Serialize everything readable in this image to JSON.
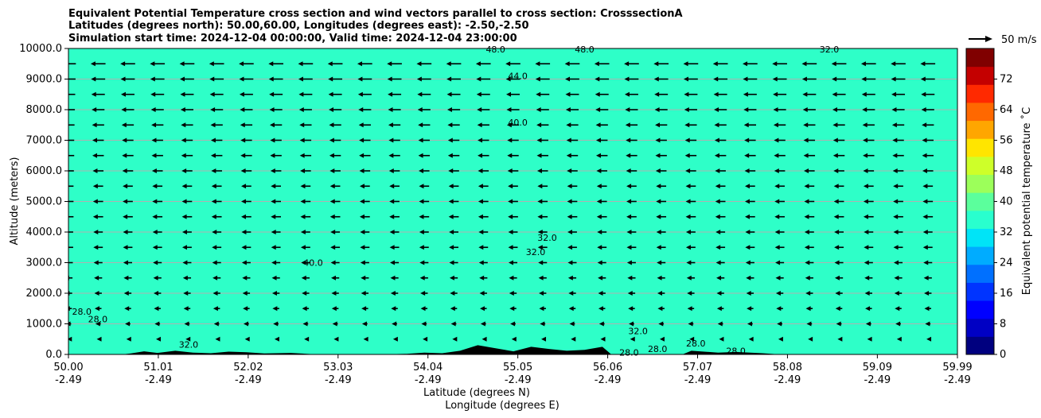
{
  "chart_data": {
    "type": "contourf",
    "title": [
      "Equivalent Potential Temperature cross section and wind vectors parallel to cross section: CrosssectionA",
      "Latitudes (degrees north): 50.00,60.00, Longitudes (degrees east): -2.50,-2.50",
      "Simulation start time: 2024-12-04 00:00:00, Valid time: 2024-12-04 23:00:00"
    ],
    "xlabel_lat": "Latitude (degrees N)",
    "xlabel_lon": "Longitude (degrees E)",
    "ylabel": "Altitude (meters)",
    "xlim": [
      50.0,
      59.99
    ],
    "ylim": [
      0,
      10000
    ],
    "xticks": [
      {
        "value": 50.0,
        "lat": "50.00",
        "lon": "-2.49"
      },
      {
        "value": 51.01,
        "lat": "51.01",
        "lon": "-2.49"
      },
      {
        "value": 52.02,
        "lat": "52.02",
        "lon": "-2.49"
      },
      {
        "value": 53.03,
        "lat": "53.03",
        "lon": "-2.49"
      },
      {
        "value": 54.04,
        "lat": "54.04",
        "lon": "-2.49"
      },
      {
        "value": 55.05,
        "lat": "55.05",
        "lon": "-2.49"
      },
      {
        "value": 56.06,
        "lat": "56.06",
        "lon": "-2.49"
      },
      {
        "value": 57.07,
        "lat": "57.07",
        "lon": "-2.49"
      },
      {
        "value": 58.08,
        "lat": "58.08",
        "lon": "-2.49"
      },
      {
        "value": 59.09,
        "lat": "59.09",
        "lon": "-2.49"
      },
      {
        "value": 59.99,
        "lat": "59.99",
        "lon": "-2.49"
      }
    ],
    "yticks": [
      {
        "value": 0,
        "label": "0.0"
      },
      {
        "value": 1000,
        "label": "1000.0"
      },
      {
        "value": 2000,
        "label": "2000.0"
      },
      {
        "value": 3000,
        "label": "3000.0"
      },
      {
        "value": 4000,
        "label": "4000.0"
      },
      {
        "value": 5000,
        "label": "5000.0"
      },
      {
        "value": 6000,
        "label": "6000.0"
      },
      {
        "value": 7000,
        "label": "7000.0"
      },
      {
        "value": 8000,
        "label": "8000.0"
      },
      {
        "value": 9000,
        "label": "9000.0"
      },
      {
        "value": 10000,
        "label": "10000.0"
      }
    ],
    "gridlines": "horizontal",
    "colorbar": {
      "label": "Equivalent potential temperature ˚C",
      "range": [
        0,
        80
      ],
      "ticks": [
        "0",
        "8",
        "16",
        "24",
        "32",
        "40",
        "48",
        "56",
        "64",
        "72"
      ],
      "tick_values": [
        0,
        8,
        16,
        24,
        32,
        40,
        48,
        56,
        64,
        72
      ],
      "colors": [
        "#00007f",
        "#0000c4",
        "#0000ff",
        "#0034ff",
        "#0070ff",
        "#00acff",
        "#00e4f7",
        "#29ffce",
        "#5bff9c",
        "#9cff5a",
        "#ceff29",
        "#ffe500",
        "#ffa600",
        "#ff6800",
        "#ff2900",
        "#c40000",
        "#800000"
      ]
    },
    "contour_levels": [
      "28.0",
      "32.0",
      "40.0",
      "44.0",
      "48.0"
    ],
    "contour_labels": [
      {
        "text": "28.0",
        "lat": 50.15,
        "alt": 1400
      },
      {
        "text": "28.0",
        "lat": 50.33,
        "alt": 1150
      },
      {
        "text": "32.0",
        "lat": 51.35,
        "alt": 320
      },
      {
        "text": "40.0",
        "lat": 52.75,
        "alt": 3000
      },
      {
        "text": "32.0",
        "lat": 55.25,
        "alt": 3350
      },
      {
        "text": "32.0",
        "lat": 55.38,
        "alt": 3820
      },
      {
        "text": "40.0",
        "lat": 55.05,
        "alt": 7580
      },
      {
        "text": "44.0",
        "lat": 55.05,
        "alt": 9100
      },
      {
        "text": "48.0",
        "lat": 54.8,
        "alt": 9970
      },
      {
        "text": "48.0",
        "lat": 55.8,
        "alt": 9970
      },
      {
        "text": "32.0",
        "lat": 56.4,
        "alt": 770
      },
      {
        "text": "28.0",
        "lat": 56.3,
        "alt": 60
      },
      {
        "text": "28.0",
        "lat": 56.62,
        "alt": 180
      },
      {
        "text": "28.0",
        "lat": 57.05,
        "alt": 360
      },
      {
        "text": "28.0",
        "lat": 57.5,
        "alt": 120
      },
      {
        "text": "32.0",
        "lat": 58.55,
        "alt": 9970
      }
    ],
    "wind_reference": {
      "label": "50 m/s"
    },
    "wind_field": {
      "direction": "southward (leftward)",
      "levels_m": [
        0,
        500,
        1000,
        1500,
        2000,
        2500,
        3000,
        3500,
        4000,
        4500,
        5000,
        5500,
        6000,
        6500,
        7000,
        7500,
        8000,
        8500,
        9000,
        9500
      ],
      "speed_ms_by_level": [
        2,
        4,
        8,
        10,
        11,
        12,
        13,
        14,
        14,
        15,
        15,
        15,
        16,
        17,
        17,
        18,
        19,
        20,
        21,
        22
      ]
    }
  }
}
